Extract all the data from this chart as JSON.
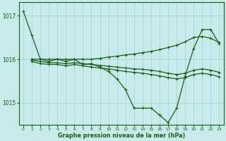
{
  "background_color": "#c8eaea",
  "grid_color": "#add8d8",
  "line_color": "#1a5c1a",
  "xlabel": "Graphe pression niveau de la mer (hPa)",
  "ylim": [
    1014.5,
    1017.3
  ],
  "xlim": [
    -0.5,
    23.5
  ],
  "yticks": [
    1015,
    1016,
    1017
  ],
  "xticks": [
    0,
    1,
    2,
    3,
    4,
    5,
    6,
    7,
    8,
    9,
    10,
    11,
    12,
    13,
    14,
    15,
    16,
    17,
    18,
    19,
    20,
    21,
    22,
    23
  ],
  "series": [
    {
      "x": [
        0,
        1,
        2,
        3,
        4,
        5,
        6,
        7,
        8,
        9,
        10,
        11,
        12,
        13,
        14,
        15,
        16,
        17,
        18,
        19,
        20,
        21,
        22,
        23
      ],
      "y": [
        1017.1,
        1016.55,
        1016.0,
        1015.95,
        1016.0,
        1015.95,
        1016.0,
        1015.88,
        1015.9,
        1015.82,
        1015.72,
        1015.55,
        1015.3,
        1014.88,
        1014.88,
        1014.88,
        1014.72,
        1014.55,
        1014.88,
        1015.62,
        1016.25,
        1016.68,
        1016.68,
        1016.35
      ]
    },
    {
      "x": [
        1,
        2,
        3,
        4,
        5,
        6,
        7,
        8,
        9,
        10,
        11,
        12,
        13,
        14,
        15,
        16,
        17,
        18,
        19,
        20,
        21,
        22,
        23
      ],
      "y": [
        1016.0,
        1016.0,
        1016.0,
        1016.0,
        1016.0,
        1016.0,
        1016.0,
        1016.0,
        1016.02,
        1016.05,
        1016.07,
        1016.1,
        1016.12,
        1016.15,
        1016.18,
        1016.22,
        1016.27,
        1016.32,
        1016.4,
        1016.5,
        1016.52,
        1016.48,
        1016.38
      ]
    },
    {
      "x": [
        1,
        2,
        3,
        4,
        5,
        6,
        7,
        8,
        9,
        10,
        11,
        12,
        13,
        14,
        15,
        16,
        17,
        18,
        19,
        20,
        21,
        22,
        23
      ],
      "y": [
        1015.95,
        1015.9,
        1015.88,
        1015.88,
        1015.85,
        1015.88,
        1015.85,
        1015.82,
        1015.8,
        1015.78,
        1015.75,
        1015.72,
        1015.7,
        1015.68,
        1015.65,
        1015.62,
        1015.58,
        1015.55,
        1015.58,
        1015.65,
        1015.68,
        1015.65,
        1015.6
      ]
    },
    {
      "x": [
        1,
        2,
        3,
        4,
        5,
        6,
        7,
        8,
        9,
        10,
        11,
        12,
        13,
        14,
        15,
        16,
        17,
        18,
        19,
        20,
        21,
        22,
        23
      ],
      "y": [
        1015.98,
        1015.95,
        1015.92,
        1015.92,
        1015.9,
        1015.92,
        1015.9,
        1015.88,
        1015.86,
        1015.84,
        1015.82,
        1015.8,
        1015.78,
        1015.77,
        1015.75,
        1015.72,
        1015.68,
        1015.65,
        1015.68,
        1015.75,
        1015.78,
        1015.75,
        1015.7
      ]
    }
  ]
}
